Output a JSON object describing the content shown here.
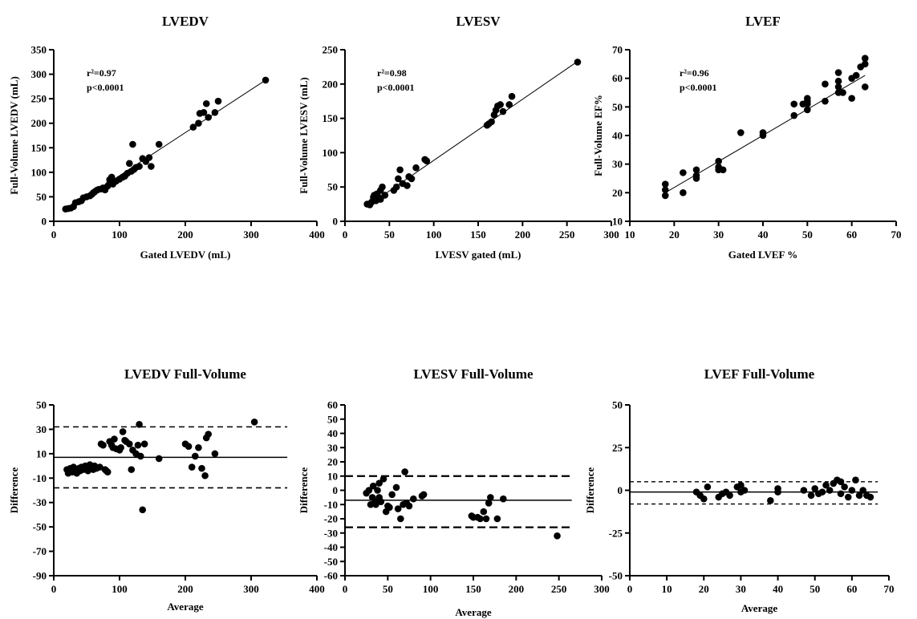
{
  "chart_data": [
    {
      "type": "scatter",
      "title": "LVEDV",
      "xlabel": "Gated LVEDV (mL)",
      "ylabel": "Full-Volume LVEDV (mL)",
      "xlim": [
        0,
        400
      ],
      "ylim": [
        0,
        350
      ],
      "xticks": [
        0,
        100,
        200,
        300,
        400
      ],
      "yticks": [
        0,
        50,
        100,
        150,
        200,
        250,
        300,
        350
      ],
      "annotations": [
        "r²=0.97",
        "p<0.0001"
      ],
      "fit_line": [
        [
          18,
          21
        ],
        [
          322,
          288
        ]
      ],
      "points": [
        [
          18,
          25
        ],
        [
          22,
          26
        ],
        [
          26,
          27
        ],
        [
          30,
          30
        ],
        [
          33,
          38
        ],
        [
          38,
          40
        ],
        [
          42,
          42
        ],
        [
          45,
          48
        ],
        [
          50,
          50
        ],
        [
          55,
          52
        ],
        [
          58,
          55
        ],
        [
          60,
          58
        ],
        [
          62,
          60
        ],
        [
          65,
          63
        ],
        [
          68,
          65
        ],
        [
          72,
          66
        ],
        [
          75,
          68
        ],
        [
          78,
          64
        ],
        [
          82,
          72
        ],
        [
          85,
          78
        ],
        [
          85,
          85
        ],
        [
          88,
          90
        ],
        [
          90,
          76
        ],
        [
          92,
          80
        ],
        [
          95,
          82
        ],
        [
          100,
          86
        ],
        [
          105,
          90
        ],
        [
          108,
          92
        ],
        [
          112,
          98
        ],
        [
          115,
          118
        ],
        [
          118,
          102
        ],
        [
          120,
          157
        ],
        [
          122,
          106
        ],
        [
          125,
          110
        ],
        [
          130,
          112
        ],
        [
          135,
          128
        ],
        [
          140,
          122
        ],
        [
          145,
          130
        ],
        [
          148,
          112
        ],
        [
          160,
          157
        ],
        [
          212,
          192
        ],
        [
          220,
          200
        ],
        [
          222,
          220
        ],
        [
          228,
          222
        ],
        [
          232,
          240
        ],
        [
          235,
          212
        ],
        [
          245,
          222
        ],
        [
          250,
          245
        ],
        [
          322,
          288
        ]
      ]
    },
    {
      "type": "scatter",
      "title": "LVESV",
      "xlabel": "LVESV gated (mL)",
      "ylabel": "Full-Volume LVESV  (mL)",
      "xlim": [
        0,
        300
      ],
      "ylim": [
        0,
        250
      ],
      "xticks": [
        0,
        50,
        100,
        150,
        200,
        250,
        300
      ],
      "yticks": [
        0,
        50,
        100,
        150,
        200,
        250
      ],
      "annotations": [
        "r²=0.98",
        "p<0.0001"
      ],
      "fit_line": [
        [
          25,
          22
        ],
        [
          262,
          233
        ]
      ],
      "points": [
        [
          25,
          25
        ],
        [
          28,
          24
        ],
        [
          30,
          28
        ],
        [
          32,
          35
        ],
        [
          33,
          38
        ],
        [
          35,
          30
        ],
        [
          36,
          40
        ],
        [
          38,
          35
        ],
        [
          40,
          32
        ],
        [
          40,
          45
        ],
        [
          42,
          50
        ],
        [
          45,
          38
        ],
        [
          55,
          45
        ],
        [
          58,
          50
        ],
        [
          60,
          62
        ],
        [
          62,
          75
        ],
        [
          65,
          55
        ],
        [
          70,
          52
        ],
        [
          72,
          65
        ],
        [
          75,
          62
        ],
        [
          80,
          78
        ],
        [
          90,
          90
        ],
        [
          92,
          88
        ],
        [
          160,
          140
        ],
        [
          162,
          142
        ],
        [
          165,
          145
        ],
        [
          168,
          155
        ],
        [
          170,
          162
        ],
        [
          172,
          168
        ],
        [
          175,
          170
        ],
        [
          178,
          160
        ],
        [
          185,
          170
        ],
        [
          188,
          182
        ],
        [
          262,
          232
        ]
      ]
    },
    {
      "type": "scatter",
      "title": "LVEF",
      "xlabel": "Gated LVEF %",
      "ylabel": "Full-Volume EF%",
      "xlim": [
        10,
        70
      ],
      "ylim": [
        10,
        70
      ],
      "xticks": [
        10,
        20,
        30,
        40,
        50,
        60,
        70
      ],
      "yticks": [
        10,
        20,
        30,
        40,
        50,
        60,
        70
      ],
      "annotations": [
        "r²=0.96",
        "p<0.0001"
      ],
      "fit_line": [
        [
          18,
          20
        ],
        [
          63,
          61
        ]
      ],
      "points": [
        [
          18,
          19
        ],
        [
          18,
          21
        ],
        [
          18,
          23
        ],
        [
          22,
          20
        ],
        [
          22,
          27
        ],
        [
          25,
          25
        ],
        [
          25,
          26
        ],
        [
          25,
          28
        ],
        [
          30,
          28
        ],
        [
          30,
          29
        ],
        [
          30,
          31
        ],
        [
          31,
          28
        ],
        [
          35,
          41
        ],
        [
          40,
          40
        ],
        [
          40,
          41
        ],
        [
          47,
          47
        ],
        [
          47,
          51
        ],
        [
          49,
          51
        ],
        [
          50,
          49
        ],
        [
          50,
          51
        ],
        [
          50,
          52
        ],
        [
          50,
          53
        ],
        [
          54,
          52
        ],
        [
          54,
          58
        ],
        [
          57,
          55
        ],
        [
          57,
          57
        ],
        [
          57,
          59
        ],
        [
          57,
          62
        ],
        [
          58,
          55
        ],
        [
          60,
          53
        ],
        [
          60,
          60
        ],
        [
          61,
          61
        ],
        [
          62,
          64
        ],
        [
          63,
          57
        ],
        [
          63,
          65
        ],
        [
          63,
          67
        ]
      ]
    },
    {
      "type": "scatter",
      "title": "LVEDV Full-Volume",
      "xlabel": "Average",
      "ylabel": "Difference",
      "xlim": [
        0,
        400
      ],
      "ylim": [
        -90,
        50
      ],
      "xticks": [
        0,
        100,
        200,
        300,
        400
      ],
      "yticks": [
        -90,
        -70,
        -50,
        -30,
        -10,
        10,
        30,
        50
      ],
      "mean_line": 7,
      "loa": [
        -18,
        32
      ],
      "mean_span": [
        0,
        355
      ],
      "points": [
        [
          20,
          -3
        ],
        [
          22,
          -6
        ],
        [
          25,
          -2
        ],
        [
          28,
          -5
        ],
        [
          30,
          -1
        ],
        [
          33,
          -3
        ],
        [
          35,
          -6
        ],
        [
          38,
          -2
        ],
        [
          40,
          -4
        ],
        [
          42,
          -1
        ],
        [
          45,
          -3
        ],
        [
          48,
          0
        ],
        [
          50,
          -2
        ],
        [
          52,
          -4
        ],
        [
          55,
          1
        ],
        [
          57,
          -2
        ],
        [
          60,
          -3
        ],
        [
          62,
          0
        ],
        [
          65,
          -2
        ],
        [
          70,
          -1
        ],
        [
          72,
          18
        ],
        [
          75,
          17
        ],
        [
          78,
          -3
        ],
        [
          80,
          -4
        ],
        [
          82,
          -5
        ],
        [
          85,
          20
        ],
        [
          88,
          17
        ],
        [
          90,
          15
        ],
        [
          92,
          22
        ],
        [
          95,
          14
        ],
        [
          100,
          13
        ],
        [
          102,
          15
        ],
        [
          105,
          28
        ],
        [
          108,
          21
        ],
        [
          110,
          20
        ],
        [
          115,
          18
        ],
        [
          118,
          -3
        ],
        [
          120,
          13
        ],
        [
          125,
          10
        ],
        [
          128,
          17
        ],
        [
          130,
          34
        ],
        [
          132,
          8
        ],
        [
          135,
          -36
        ],
        [
          138,
          18
        ],
        [
          160,
          6
        ],
        [
          200,
          18
        ],
        [
          205,
          16
        ],
        [
          210,
          -1
        ],
        [
          215,
          8
        ],
        [
          220,
          15
        ],
        [
          225,
          -2
        ],
        [
          230,
          -8
        ],
        [
          232,
          23
        ],
        [
          235,
          26
        ],
        [
          245,
          10
        ],
        [
          305,
          36
        ]
      ]
    },
    {
      "type": "scatter",
      "title": "LVESV Full-Volume",
      "xlabel": "Average",
      "ylabel": "Difference",
      "xlim": [
        0,
        300
      ],
      "ylim": [
        -60,
        60
      ],
      "xticks": [
        0,
        50,
        100,
        150,
        200,
        250,
        300
      ],
      "yticks": [
        -60,
        -50,
        -40,
        -30,
        -20,
        -10,
        0,
        10,
        20,
        30,
        40,
        50,
        60
      ],
      "mean_line": -7,
      "loa": [
        -26,
        10
      ],
      "mean_span": [
        0,
        265
      ],
      "points": [
        [
          25,
          -2
        ],
        [
          28,
          0
        ],
        [
          30,
          -10
        ],
        [
          32,
          -5
        ],
        [
          33,
          3
        ],
        [
          35,
          -8
        ],
        [
          36,
          -10
        ],
        [
          38,
          0
        ],
        [
          40,
          5
        ],
        [
          40,
          -5
        ],
        [
          42,
          -8
        ],
        [
          45,
          8
        ],
        [
          48,
          -15
        ],
        [
          50,
          -11
        ],
        [
          52,
          -12
        ],
        [
          55,
          -3
        ],
        [
          60,
          2
        ],
        [
          62,
          -13
        ],
        [
          65,
          -20
        ],
        [
          68,
          -10
        ],
        [
          70,
          13
        ],
        [
          72,
          -9
        ],
        [
          75,
          -11
        ],
        [
          80,
          -6
        ],
        [
          90,
          -4
        ],
        [
          92,
          -3
        ],
        [
          148,
          -18
        ],
        [
          150,
          -19
        ],
        [
          155,
          -19
        ],
        [
          158,
          -20
        ],
        [
          162,
          -15
        ],
        [
          165,
          -20
        ],
        [
          168,
          -9
        ],
        [
          170,
          -5
        ],
        [
          178,
          -20
        ],
        [
          185,
          -6
        ],
        [
          248,
          -32
        ]
      ]
    },
    {
      "type": "scatter",
      "title": "LVEF Full-Volume",
      "xlabel": "Average",
      "ylabel": "Difference",
      "xlim": [
        0,
        70
      ],
      "ylim": [
        -50,
        50
      ],
      "xticks": [
        0,
        10,
        20,
        30,
        40,
        50,
        60,
        70
      ],
      "yticks": [
        -50,
        -25,
        0,
        25,
        50
      ],
      "mean_line": -1,
      "loa": [
        -8,
        5
      ],
      "mean_span": [
        0,
        67
      ],
      "points": [
        [
          18,
          -1
        ],
        [
          19,
          -3
        ],
        [
          20,
          -5
        ],
        [
          21,
          2
        ],
        [
          24,
          -4
        ],
        [
          25,
          -2
        ],
        [
          26,
          -1
        ],
        [
          27,
          -3
        ],
        [
          29,
          2
        ],
        [
          30,
          -1
        ],
        [
          30,
          3
        ],
        [
          31,
          0
        ],
        [
          38,
          -6
        ],
        [
          40,
          1
        ],
        [
          40,
          -1
        ],
        [
          47,
          0
        ],
        [
          49,
          -3
        ],
        [
          50,
          1
        ],
        [
          51,
          -2
        ],
        [
          52,
          -1
        ],
        [
          53,
          3
        ],
        [
          54,
          0
        ],
        [
          55,
          4
        ],
        [
          56,
          6
        ],
        [
          57,
          5
        ],
        [
          57,
          -2
        ],
        [
          58,
          2
        ],
        [
          59,
          -4
        ],
        [
          60,
          0
        ],
        [
          61,
          6
        ],
        [
          62,
          -3
        ],
        [
          63,
          0
        ],
        [
          64,
          -3
        ],
        [
          65,
          -4
        ]
      ]
    }
  ]
}
